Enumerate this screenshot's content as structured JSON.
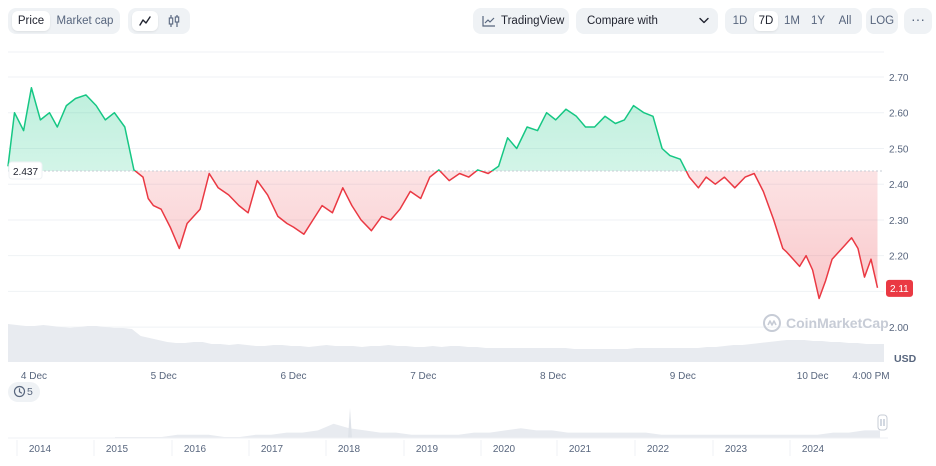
{
  "toolbar": {
    "price_tab": "Price",
    "marketcap_tab": "Market cap",
    "tradingview": "TradingView",
    "compare": "Compare with",
    "ranges": [
      "1D",
      "7D",
      "1M",
      "1Y",
      "All"
    ],
    "active_range": "7D",
    "log": "LOG",
    "more": "···"
  },
  "watermark": "CoinMarketCap",
  "annotation_count": "5",
  "colors": {
    "up": "#16c784",
    "down": "#ea3943",
    "up_fill": "#16c784",
    "down_fill": "#ea3943",
    "baseline": "#c7ccd6",
    "volume": "#e8ebf0"
  },
  "chart_data": {
    "type": "line",
    "baseline": 2.437,
    "baseline_label": "2.437",
    "last_value": 2.11,
    "last_label": "2.11",
    "ylim": [
      1.95,
      2.77
    ],
    "y_ticks": [
      "2.70",
      "2.60",
      "2.50",
      "2.40",
      "2.30",
      "2.20",
      "2.10",
      "2.00"
    ],
    "y_unit": "USD",
    "x_ticks": [
      "4 Dec",
      "5 Dec",
      "6 Dec",
      "7 Dec",
      "8 Dec",
      "9 Dec",
      "10 Dec",
      "4:00 PM"
    ],
    "x_tick_positions": [
      0.2,
      1.2,
      2.2,
      3.2,
      4.2,
      5.2,
      6.2,
      6.65
    ],
    "xlim": [
      0,
      6.75
    ],
    "x": [
      0,
      0.05,
      0.12,
      0.18,
      0.25,
      0.32,
      0.38,
      0.45,
      0.52,
      0.6,
      0.68,
      0.75,
      0.82,
      0.9,
      0.97,
      1.04,
      1.08,
      1.12,
      1.18,
      1.25,
      1.32,
      1.38,
      1.43,
      1.48,
      1.55,
      1.62,
      1.7,
      1.78,
      1.85,
      1.92,
      2.0,
      2.08,
      2.15,
      2.2,
      2.28,
      2.35,
      2.42,
      2.5,
      2.58,
      2.65,
      2.72,
      2.8,
      2.88,
      2.95,
      3.02,
      3.1,
      3.18,
      3.25,
      3.32,
      3.4,
      3.48,
      3.55,
      3.62,
      3.7,
      3.78,
      3.85,
      3.92,
      4.0,
      4.08,
      4.15,
      4.22,
      4.3,
      4.38,
      4.45,
      4.52,
      4.6,
      4.68,
      4.75,
      4.82,
      4.9,
      4.97,
      5.04,
      5.1,
      5.18,
      5.25,
      5.32,
      5.38,
      5.45,
      5.52,
      5.6,
      5.68,
      5.75,
      5.82,
      5.9,
      5.97,
      6.0,
      6.05,
      6.1,
      6.15,
      6.2,
      6.25,
      6.3,
      6.35,
      6.4,
      6.45,
      6.5,
      6.55,
      6.6,
      6.65,
      6.7
    ],
    "y": [
      2.45,
      2.6,
      2.55,
      2.67,
      2.58,
      2.6,
      2.56,
      2.62,
      2.64,
      2.65,
      2.62,
      2.58,
      2.6,
      2.56,
      2.44,
      2.42,
      2.36,
      2.34,
      2.33,
      2.28,
      2.22,
      2.29,
      2.31,
      2.33,
      2.43,
      2.39,
      2.37,
      2.34,
      2.32,
      2.41,
      2.37,
      2.31,
      2.29,
      2.28,
      2.26,
      2.3,
      2.34,
      2.32,
      2.39,
      2.34,
      2.3,
      2.27,
      2.31,
      2.3,
      2.33,
      2.38,
      2.36,
      2.42,
      2.44,
      2.41,
      2.43,
      2.42,
      2.44,
      2.43,
      2.45,
      2.53,
      2.5,
      2.56,
      2.55,
      2.6,
      2.58,
      2.61,
      2.59,
      2.56,
      2.56,
      2.59,
      2.57,
      2.58,
      2.62,
      2.6,
      2.59,
      2.5,
      2.48,
      2.47,
      2.42,
      2.39,
      2.42,
      2.4,
      2.42,
      2.39,
      2.42,
      2.43,
      2.38,
      2.3,
      2.22,
      2.21,
      2.19,
      2.17,
      2.2,
      2.16,
      2.08,
      2.13,
      2.19,
      2.21,
      2.23,
      2.25,
      2.22,
      2.14,
      2.19,
      2.11
    ],
    "volume_label": "",
    "timeline_years": [
      "2014",
      "2015",
      "2016",
      "2017",
      "2018",
      "2019",
      "2020",
      "2021",
      "2022",
      "2023",
      "2024"
    ]
  }
}
